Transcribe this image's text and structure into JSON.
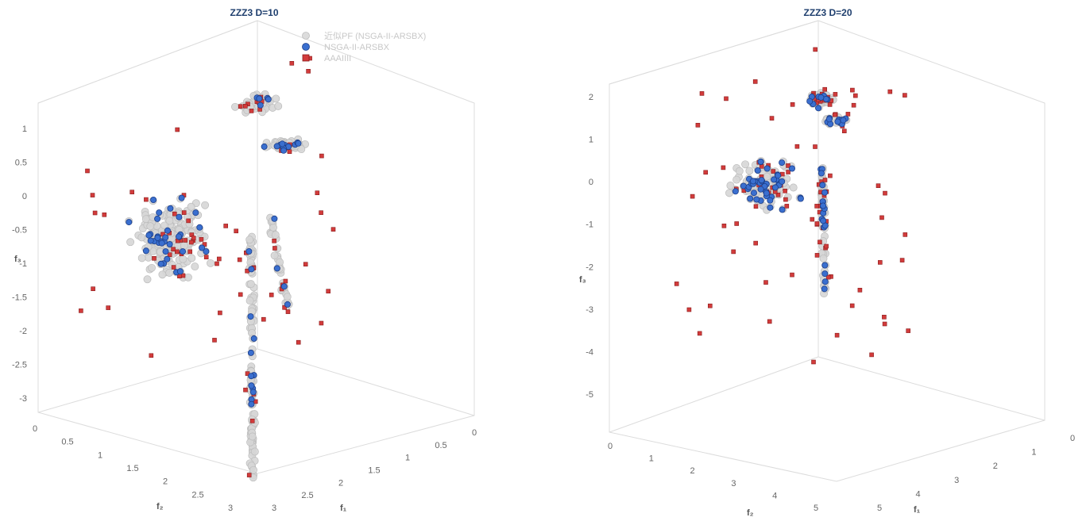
{
  "chart_data": [
    {
      "type": "scatter",
      "title": "ZZZ3 D=10",
      "axes": {
        "x": {
          "label": "f₁",
          "ticks": [
            "0",
            "0.5",
            "1",
            "1.5",
            "2",
            "2.5",
            "3"
          ]
        },
        "y": {
          "label": "f₂",
          "ticks": [
            "0",
            "0.5",
            "1",
            "1.5",
            "2",
            "2.5",
            "3"
          ]
        },
        "z": {
          "label": "f₃",
          "ticks": [
            "1",
            "0.5",
            "0",
            "-0.5",
            "-1",
            "-1.5",
            "-2",
            "-2.5",
            "-3"
          ]
        }
      },
      "legend": {
        "position": "top-right",
        "entries": [
          "近似PF (NSGA-II-ARSBX)",
          "NSGA-II-ARSBX",
          "AAAIIII"
        ]
      },
      "series": [
        {
          "name": "近似PF (NSGA-II-ARSBX)",
          "marker": "circle",
          "color": "#cfcfcf",
          "clusters": [
            {
              "role": "top-cap",
              "count": 55
            },
            {
              "role": "right-arm",
              "count": 45
            },
            {
              "role": "left-sheet",
              "count": 210
            },
            {
              "role": "stem",
              "count": 120
            },
            {
              "role": "right-column",
              "count": 35
            }
          ]
        },
        {
          "name": "NSGA-II-ARSBX",
          "marker": "circle",
          "color": "#3a6fcf",
          "count": 70
        },
        {
          "name": "AAAIIII",
          "marker": "square",
          "color": "#d23b3b",
          "count": 90
        }
      ]
    },
    {
      "type": "scatter",
      "title": "ZZZ3 D=20",
      "axes": {
        "x": {
          "label": "f₁",
          "ticks": [
            "0",
            "1",
            "2",
            "3",
            "4",
            "5"
          ]
        },
        "y": {
          "label": "f₂",
          "ticks": [
            "0",
            "1",
            "2",
            "3",
            "4",
            "5"
          ]
        },
        "z": {
          "label": "f₃",
          "ticks": [
            "2",
            "1",
            "0",
            "-1",
            "-2",
            "-3",
            "-4",
            "-5"
          ]
        }
      },
      "series": [
        {
          "name": "近似PF (NSGA-II-ARSBX)",
          "marker": "circle",
          "color": "#cfcfcf",
          "clusters": [
            {
              "role": "top-cap",
              "count": 45
            },
            {
              "role": "right-arm",
              "count": 30
            },
            {
              "role": "left-sheet",
              "count": 110
            },
            {
              "role": "stem",
              "count": 70
            }
          ]
        },
        {
          "name": "NSGA-II-ARSBX",
          "marker": "circle",
          "color": "#3a6fcf",
          "count": 85
        },
        {
          "name": "AAAIIII",
          "marker": "square",
          "color": "#d23b3b",
          "count": 110
        }
      ]
    }
  ]
}
